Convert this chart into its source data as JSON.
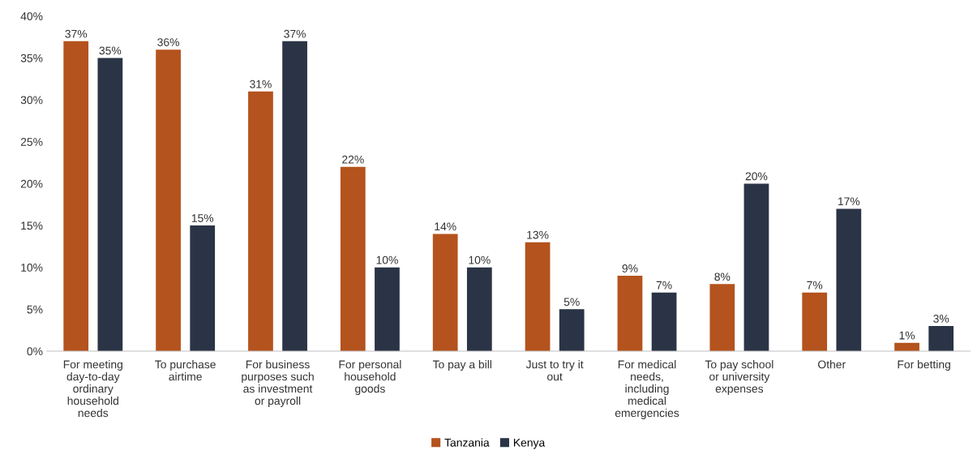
{
  "chart_data": {
    "type": "bar",
    "categories": [
      "For meeting\nday-to-day\nordinary\nhousehold\nneeds",
      "To purchase\nairtime",
      "For business\npurposes such\nas investment\nor payroll",
      "For personal\nhousehold\ngoods",
      "To pay a bill",
      "Just to try it\nout",
      "For medical\nneeds,\nincluding\nmedical\nemergencies",
      "To pay school\nor university\nexpenses",
      "Other",
      "For betting"
    ],
    "series": [
      {
        "name": "Tanzania",
        "color": "#b4531d",
        "values": [
          37,
          36,
          31,
          22,
          14,
          13,
          9,
          8,
          7,
          1
        ]
      },
      {
        "name": "Kenya",
        "color": "#2a3446",
        "values": [
          35,
          15,
          37,
          10,
          10,
          5,
          7,
          20,
          17,
          3
        ]
      }
    ],
    "ylim": [
      0,
      40
    ],
    "yticks": [
      {
        "value": 0,
        "label": "0%"
      },
      {
        "value": 5,
        "label": "5%"
      },
      {
        "value": 10,
        "label": "10%"
      },
      {
        "value": 15,
        "label": "15%"
      },
      {
        "value": 20,
        "label": "20%"
      },
      {
        "value": 25,
        "label": "25%"
      },
      {
        "value": 30,
        "label": "30%"
      },
      {
        "value": 35,
        "label": "35%"
      },
      {
        "value": 40,
        "label": "40%"
      }
    ],
    "value_labels": [
      [
        "37%",
        "36%",
        "31%",
        "22%",
        "14%",
        "13%",
        "9%",
        "8%",
        "7%",
        "1%"
      ],
      [
        "35%",
        "15%",
        "37%",
        "10%",
        "10%",
        "5%",
        "7%",
        "20%",
        "17%",
        "3%"
      ]
    ],
    "grid": false,
    "legend": "bottom"
  }
}
